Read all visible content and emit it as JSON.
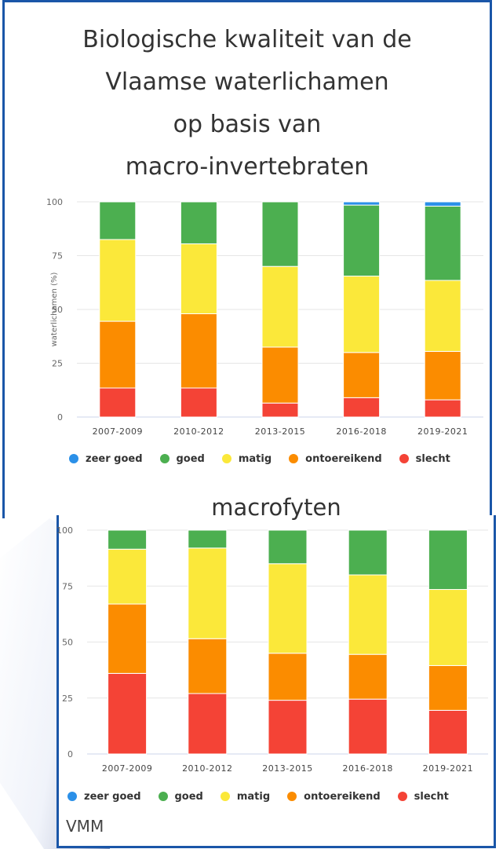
{
  "title_lines": [
    "Biologische kwaliteit van de",
    "Vlaamse waterlichamen",
    "op basis van",
    "macro-invertebraten"
  ],
  "credit": "VMM",
  "colors": {
    "zeer_goed": "#2b90e8",
    "goed": "#4caf50",
    "matig": "#fbe83a",
    "ontoereikend": "#fb8c00",
    "slecht": "#f44336"
  },
  "chart_data": [
    {
      "type": "bar",
      "stacked": true,
      "title": "",
      "ylabel": "waterlichamen (%)",
      "ylim": [
        0,
        100
      ],
      "yticks": [
        0,
        25,
        50,
        75,
        100
      ],
      "grid": true,
      "legend_position": "bottom",
      "categories": [
        "2007-2009",
        "2010-2012",
        "2013-2015",
        "2016-2018",
        "2019-2021"
      ],
      "series": [
        {
          "name": "slecht",
          "color": "#f44336",
          "values": [
            13.5,
            13.5,
            6.5,
            9,
            8
          ]
        },
        {
          "name": "ontoereikend",
          "color": "#fb8c00",
          "values": [
            31,
            34.5,
            26,
            21,
            22.5
          ]
        },
        {
          "name": "matig",
          "color": "#fbe83a",
          "values": [
            38,
            32.5,
            37.5,
            35.5,
            33
          ]
        },
        {
          "name": "goed",
          "color": "#4caf50",
          "values": [
            17.5,
            19.5,
            30,
            33,
            34.5
          ]
        },
        {
          "name": "zeer goed",
          "color": "#2b90e8",
          "values": [
            0,
            0,
            0,
            1.5,
            2
          ]
        }
      ]
    },
    {
      "type": "bar",
      "stacked": true,
      "title": "macrofyten",
      "ylabel": "",
      "ylim": [
        0,
        100
      ],
      "yticks": [
        0,
        25,
        50,
        75,
        100
      ],
      "grid": true,
      "legend_position": "bottom",
      "categories": [
        "2007-2009",
        "2010-2012",
        "2013-2015",
        "2016-2018",
        "2019-2021"
      ],
      "series": [
        {
          "name": "slecht",
          "color": "#f44336",
          "values": [
            36,
            27,
            24,
            24.5,
            19.5
          ]
        },
        {
          "name": "ontoereikend",
          "color": "#fb8c00",
          "values": [
            31,
            24.5,
            21,
            20,
            20
          ]
        },
        {
          "name": "matig",
          "color": "#fbe83a",
          "values": [
            24.5,
            40.5,
            40,
            35.5,
            34
          ]
        },
        {
          "name": "goed",
          "color": "#4caf50",
          "values": [
            8.5,
            8,
            15,
            20,
            26.5
          ]
        },
        {
          "name": "zeer goed",
          "color": "#2b90e8",
          "values": [
            0,
            0,
            0,
            0,
            0
          ]
        }
      ]
    }
  ],
  "legend": [
    {
      "label": "zeer goed",
      "color": "#2b90e8"
    },
    {
      "label": "goed",
      "color": "#4caf50"
    },
    {
      "label": "matig",
      "color": "#fbe83a"
    },
    {
      "label": "ontoereikend",
      "color": "#fb8c00"
    },
    {
      "label": "slecht",
      "color": "#f44336"
    }
  ]
}
